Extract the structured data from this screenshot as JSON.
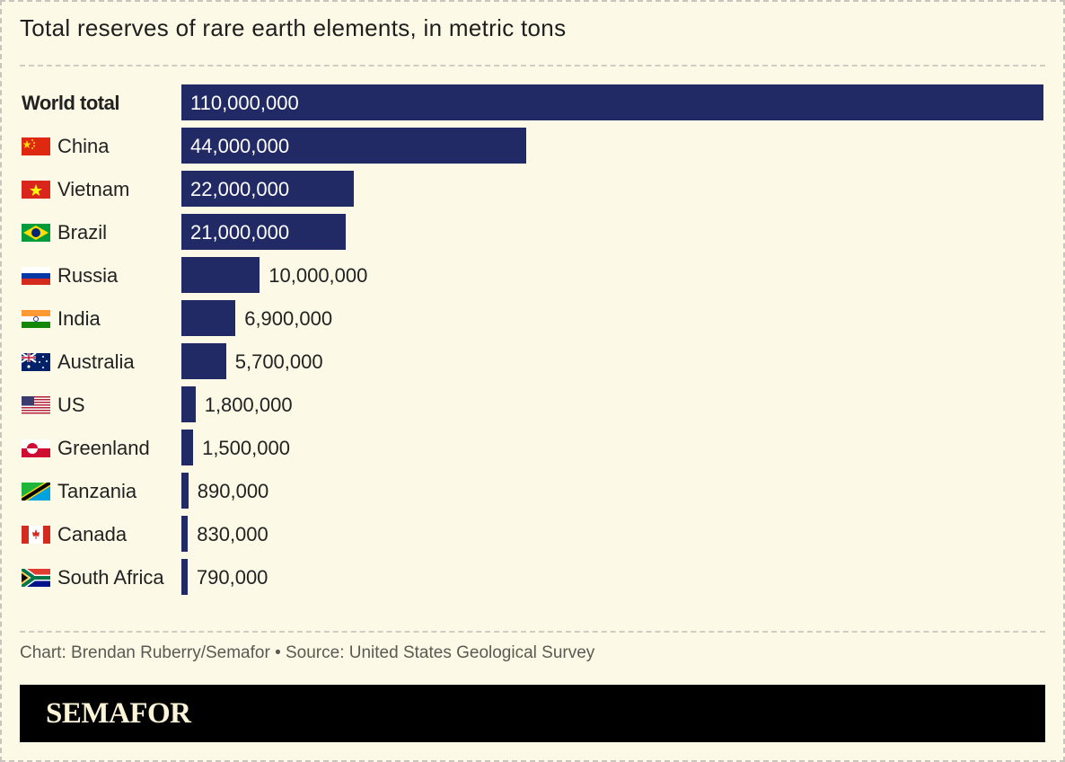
{
  "chart_data": {
    "type": "bar",
    "orientation": "horizontal",
    "title": "Total reserves of rare earth elements, in metric tons",
    "xlabel": "",
    "ylabel": "",
    "xlim": [
      0,
      110000000
    ],
    "grid": false,
    "bar_color": "#222a66",
    "categories": [
      "World total",
      "China",
      "Vietnam",
      "Brazil",
      "Russia",
      "India",
      "Australia",
      "US",
      "Greenland",
      "Tanzania",
      "Canada",
      "South Africa"
    ],
    "values": [
      110000000,
      44000000,
      22000000,
      21000000,
      10000000,
      6900000,
      5700000,
      1800000,
      1500000,
      890000,
      830000,
      790000
    ],
    "labels": [
      "110,000,000",
      "44,000,000",
      "22,000,000",
      "21,000,000",
      "10,000,000",
      "6,900,000",
      "5,700,000",
      "1,800,000",
      "1,500,000",
      "890,000",
      "830,000",
      "790,000"
    ],
    "flags": [
      null,
      "china-flag-icon",
      "vietnam-flag-icon",
      "brazil-flag-icon",
      "russia-flag-icon",
      "india-flag-icon",
      "australia-flag-icon",
      "us-flag-icon",
      "greenland-flag-icon",
      "tanzania-flag-icon",
      "canada-flag-icon",
      "south-africa-flag-icon"
    ]
  },
  "credit": "Chart: Brendan Ruberry/Semafor • Source: United States Geological Survey",
  "logo": "SEMAFOR"
}
